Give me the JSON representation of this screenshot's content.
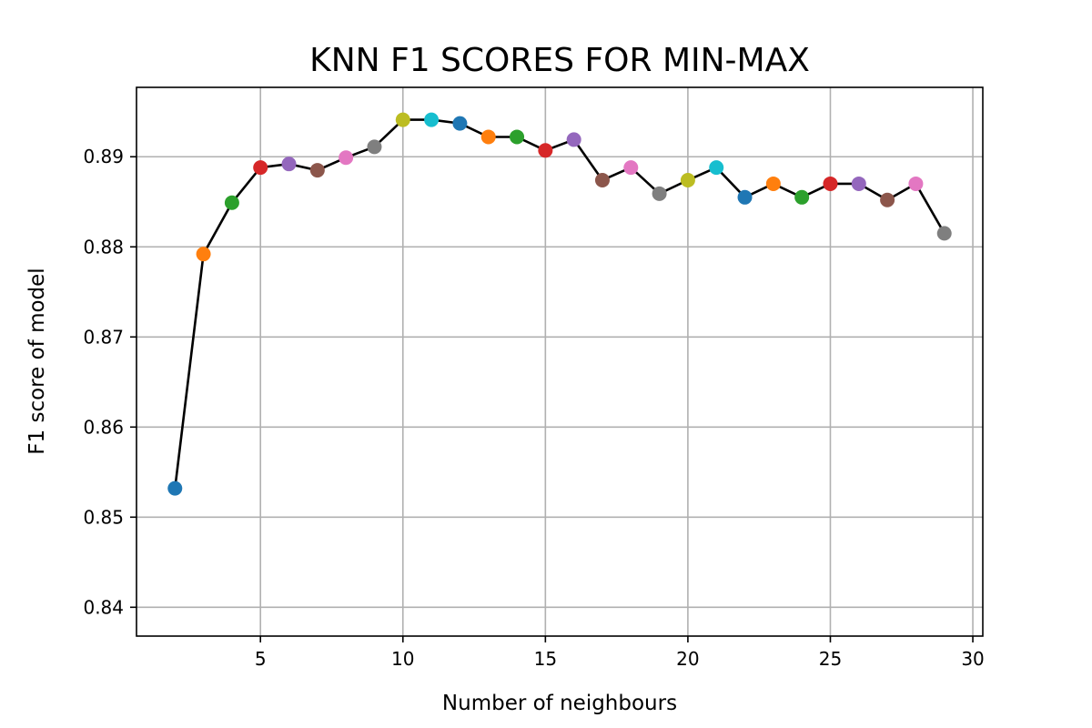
{
  "chart_data": {
    "type": "line",
    "title": "KNN F1 SCORES FOR MIN-MAX",
    "xlabel": "Number of neighbours",
    "ylabel": "F1 score of model",
    "xlim": [
      0.65,
      30.35
    ],
    "ylim": [
      0.8368,
      0.8977
    ],
    "xticks": [
      5,
      10,
      15,
      20,
      25,
      30
    ],
    "yticks": [
      0.84,
      0.85,
      0.86,
      0.87,
      0.88,
      0.89
    ],
    "grid": true,
    "line_color": "#000000",
    "series": [
      {
        "x": [
          2,
          3,
          4,
          5,
          6,
          7,
          8,
          9,
          10,
          11,
          12,
          13,
          14,
          15,
          16,
          17,
          18,
          19,
          20,
          21,
          22,
          23,
          24,
          25,
          26,
          27,
          28,
          29
        ],
        "y": [
          0.8532,
          0.8792,
          0.8849,
          0.8888,
          0.8892,
          0.8885,
          0.8899,
          0.8911,
          0.8941,
          0.8941,
          0.8937,
          0.8922,
          0.8922,
          0.8907,
          0.8919,
          0.8874,
          0.8888,
          0.8859,
          0.8874,
          0.8888,
          0.8855,
          0.887,
          0.8855,
          0.887,
          0.887,
          0.8852,
          0.887,
          0.8815
        ]
      }
    ],
    "point_colors": [
      "#1f77b4",
      "#ff7f0e",
      "#2ca02c",
      "#d62728",
      "#9467bd",
      "#8c564b",
      "#e377c2",
      "#7f7f7f",
      "#bcbd22",
      "#17becf"
    ]
  }
}
